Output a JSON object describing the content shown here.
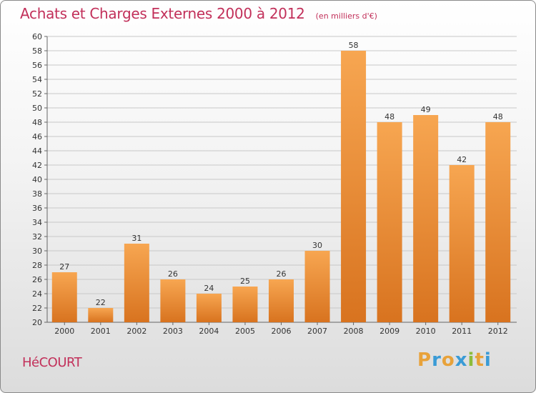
{
  "chart_data": {
    "type": "bar",
    "title": "Achats et Charges Externes 2000 à 2012",
    "unit_note": "(en milliers d'€)",
    "categories": [
      "2000",
      "2001",
      "2002",
      "2003",
      "2004",
      "2005",
      "2006",
      "2007",
      "2008",
      "2009",
      "2010",
      "2011",
      "2012"
    ],
    "values": [
      27,
      22,
      31,
      26,
      24,
      25,
      26,
      30,
      58,
      48,
      49,
      42,
      48
    ],
    "ylim": [
      20,
      60
    ],
    "y_ticks": [
      20,
      22,
      24,
      26,
      28,
      30,
      32,
      34,
      36,
      38,
      40,
      42,
      44,
      46,
      48,
      50,
      52,
      54,
      56,
      58,
      60
    ],
    "grid": true,
    "bar_color": "#f0913a"
  },
  "footer": {
    "commune": "HéCOURT",
    "logo_letters": [
      "P",
      "r",
      "o",
      "x",
      "i",
      "t",
      "i"
    ],
    "logo_colors": [
      "#e8a23a",
      "#3a9bd6",
      "#e8a23a",
      "#3a9bd6",
      "#8cbc3a",
      "#e8a23a",
      "#3a9bd6"
    ]
  }
}
